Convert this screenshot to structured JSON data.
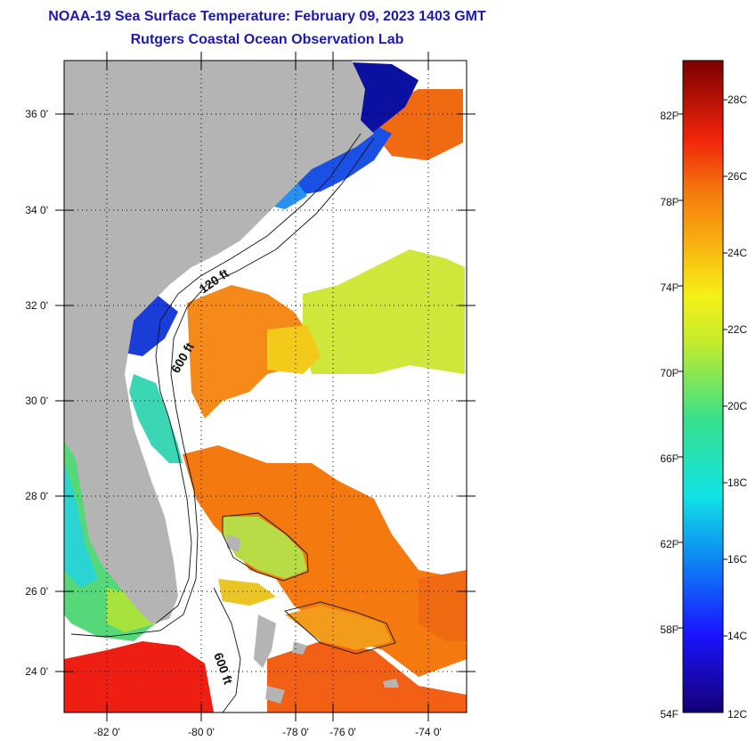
{
  "title": {
    "line1": "NOAA-19 Sea Surface Temperature:  February 09, 2023 1403 GMT",
    "line2": "Rutgers Coastal Ocean Observation Lab"
  },
  "map": {
    "lat_labels": [
      "36 0'",
      "34 0'",
      "32 0'",
      "30 0'",
      "28 0'",
      "26 0'",
      "24 0'"
    ],
    "lon_labels": [
      "-82 0'",
      "-80 0'",
      "-78 0'",
      "-76 0'",
      "-74 0'"
    ],
    "lat_range": [
      23,
      37
    ],
    "lon_range": [
      -83,
      -73
    ],
    "contour_labels": [
      "120 ft",
      "600 ft",
      "600 ft"
    ],
    "colors": {
      "land": "#b4b4b4",
      "cloud": "#ffffff",
      "grid": "#000000"
    }
  },
  "colorbar": {
    "fahrenheit_labels": [
      "82F",
      "78F",
      "74F",
      "70F",
      "66F",
      "62F",
      "58F",
      "54F"
    ],
    "celsius_labels": [
      "28C",
      "26C",
      "24C",
      "22C",
      "20C",
      "18C",
      "16C",
      "14C",
      "12C"
    ],
    "min_c": 12,
    "max_c": 29
  }
}
